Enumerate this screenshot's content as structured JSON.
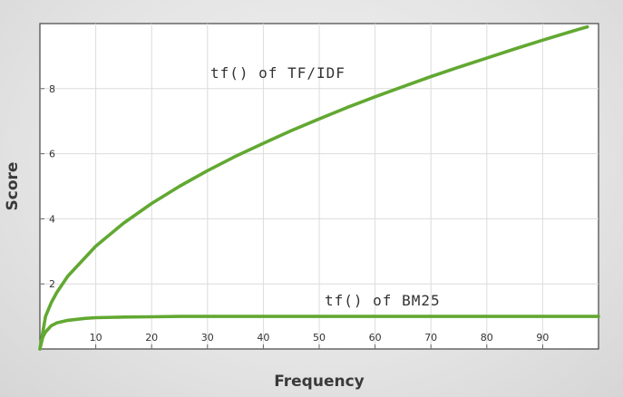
{
  "chart_data": {
    "type": "line",
    "title": "",
    "xlabel": "Frequency",
    "ylabel": "Score",
    "xlim": [
      0,
      100
    ],
    "ylim": [
      0,
      10
    ],
    "x_ticks": [
      10,
      20,
      30,
      40,
      50,
      60,
      70,
      80,
      90
    ],
    "y_ticks": [
      2,
      4,
      6,
      8
    ],
    "grid": true,
    "series": [
      {
        "name": "tf() of TF/IDF",
        "color": "#62a832",
        "x": [
          0,
          1,
          2,
          3,
          5,
          10,
          15,
          20,
          25,
          30,
          35,
          40,
          45,
          50,
          55,
          60,
          65,
          70,
          75,
          80,
          85,
          90,
          95,
          98
        ],
        "y": [
          0,
          1.0,
          1.41,
          1.73,
          2.24,
          3.16,
          3.87,
          4.47,
          5.0,
          5.48,
          5.92,
          6.32,
          6.71,
          7.07,
          7.42,
          7.75,
          8.06,
          8.37,
          8.66,
          8.94,
          9.22,
          9.49,
          9.75,
          9.9
        ]
      },
      {
        "name": "tf() of BM25",
        "color": "#62a832",
        "x": [
          0,
          0.5,
          1,
          2,
          3,
          5,
          8,
          10,
          15,
          20,
          25,
          30,
          40,
          50,
          60,
          70,
          80,
          90,
          100
        ],
        "y": [
          0,
          0.36,
          0.52,
          0.71,
          0.8,
          0.88,
          0.94,
          0.96,
          0.98,
          0.99,
          1.0,
          1.0,
          1.0,
          1.0,
          1.0,
          1.0,
          1.0,
          1.0,
          1.0
        ]
      }
    ]
  }
}
